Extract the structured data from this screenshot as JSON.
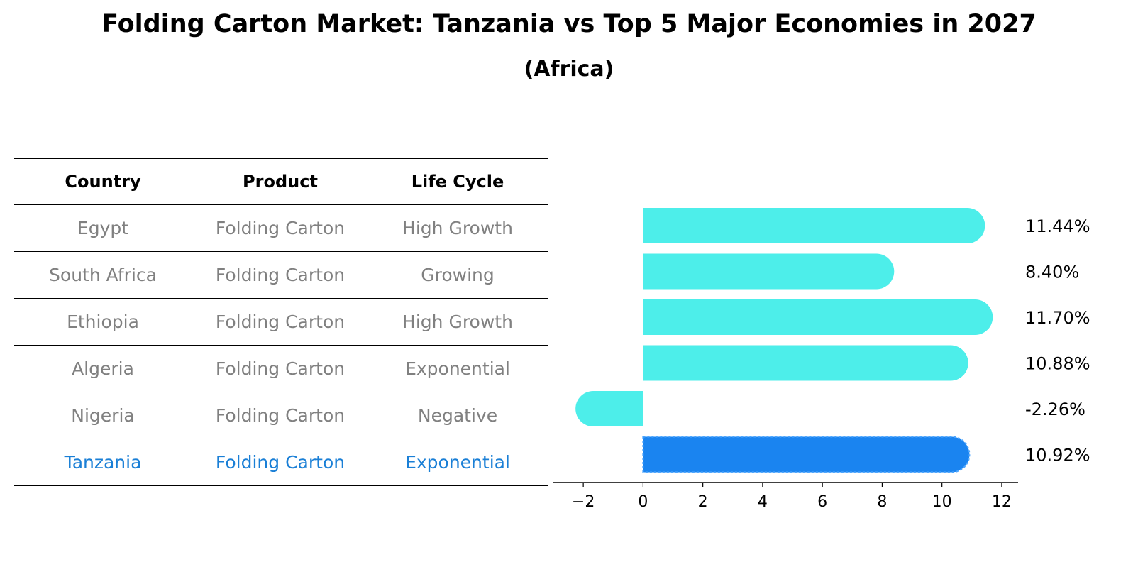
{
  "title": "Folding Carton Market: Tanzania vs Top 5 Major Economies in 2027",
  "subtitle": "(Africa)",
  "table": {
    "headers": [
      "Country",
      "Product",
      "Life Cycle"
    ],
    "rows": [
      [
        "Egypt",
        "Folding Carton",
        "High Growth"
      ],
      [
        "South Africa",
        "Folding Carton",
        "Growing"
      ],
      [
        "Ethiopia",
        "Folding Carton",
        "High Growth"
      ],
      [
        "Algeria",
        "Folding Carton",
        "Exponential"
      ],
      [
        "Nigeria",
        "Folding Carton",
        "Negative"
      ],
      [
        "Tanzania",
        "Folding Carton",
        "Exponential"
      ]
    ]
  },
  "colors": {
    "bar": "#4deeea",
    "highlight_bar": "#1a84f0",
    "highlight_text": "#1a7fd6",
    "muted_text": "#808080"
  },
  "chart_data": {
    "type": "bar",
    "orientation": "horizontal",
    "categories": [
      "Egypt",
      "South Africa",
      "Ethiopia",
      "Algeria",
      "Nigeria",
      "Tanzania"
    ],
    "values": [
      11.44,
      8.4,
      11.7,
      10.88,
      -2.26,
      10.92
    ],
    "value_labels": [
      "11.44%",
      "8.40%",
      "11.70%",
      "10.88%",
      "-2.26%",
      "10.92%"
    ],
    "highlight": "Tanzania",
    "xlim": [
      -3,
      12.5
    ],
    "xticks": [
      -2,
      0,
      2,
      4,
      6,
      8,
      10,
      12
    ],
    "xtick_labels": [
      "−2",
      "0",
      "2",
      "4",
      "6",
      "8",
      "10",
      "12"
    ],
    "grid": false
  }
}
